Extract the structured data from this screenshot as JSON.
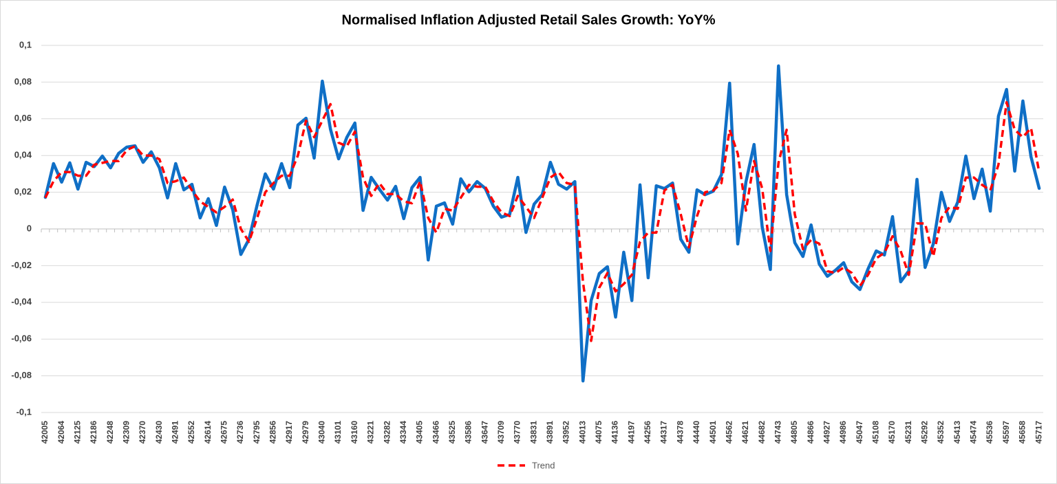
{
  "chart_data": {
    "type": "line",
    "title": "Normalised Inflation Adjusted Retail Sales Growth: YoY%",
    "categories": [
      "42005",
      null,
      "42064",
      null,
      "42125",
      null,
      "42186",
      null,
      "42248",
      null,
      "42309",
      null,
      "42370",
      null,
      "42430",
      null,
      "42491",
      null,
      "42552",
      null,
      "42614",
      null,
      "42675",
      null,
      "42736",
      null,
      "42795",
      null,
      "42856",
      null,
      "42917",
      null,
      "42979",
      null,
      "43040",
      null,
      "43101",
      null,
      "43160",
      null,
      "43221",
      null,
      "43282",
      null,
      "43344",
      null,
      "43405",
      null,
      "43466",
      null,
      "43525",
      null,
      "43586",
      null,
      "43647",
      null,
      "43709",
      null,
      "43770",
      null,
      "43831",
      null,
      "43891",
      null,
      "43952",
      null,
      "44013",
      null,
      "44075",
      null,
      "44136",
      null,
      "44197",
      null,
      "44256",
      null,
      "44317",
      null,
      "44378",
      null,
      "44440",
      null,
      "44501",
      null,
      "44562",
      null,
      "44621",
      null,
      "44682",
      null,
      "44743",
      null,
      "44805",
      null,
      "44866",
      null,
      "44927",
      null,
      "44986",
      null,
      "45047",
      null,
      "45108",
      null,
      "45170",
      null,
      "45231",
      null,
      "45292",
      null,
      "45352",
      null,
      "45413",
      null,
      "45474",
      null,
      "45536",
      null,
      "45597",
      null,
      "45658",
      null,
      "45717"
    ],
    "series": [
      {
        "color": "#0f6fc6",
        "dashed": false,
        "values": [
          0.0172,
          0.0356,
          0.0255,
          0.036,
          0.0217,
          0.0363,
          0.034,
          0.0397,
          0.0333,
          0.0412,
          0.0446,
          0.0453,
          0.0363,
          0.042,
          0.0333,
          0.0169,
          0.0356,
          0.0213,
          0.0243,
          0.006,
          0.0165,
          0.0019,
          0.0228,
          0.0105,
          -0.0139,
          -0.0056,
          0.0131,
          0.03,
          0.0217,
          0.0356,
          0.0225,
          0.0566,
          0.0603,
          0.0386,
          0.0805,
          0.0543,
          0.0382,
          0.0498,
          0.0577,
          0.0101,
          0.0281,
          0.0217,
          0.0157,
          0.0232,
          0.0056,
          0.0225,
          0.0281,
          -0.0169,
          0.0124,
          0.0142,
          0.0026,
          0.0273,
          0.0202,
          0.0258,
          0.0221,
          0.0124,
          0.0064,
          0.0079,
          0.0281,
          -0.0019,
          0.0135,
          0.0187,
          0.0363,
          0.0243,
          0.0217,
          0.0258,
          -0.0828,
          -0.039,
          -0.0243,
          -0.0206,
          -0.048,
          -0.0127,
          -0.039,
          0.024,
          -0.0266,
          0.0235,
          0.022,
          0.025,
          -0.0056,
          -0.0127,
          0.0213,
          0.0187,
          0.0206,
          0.0296,
          0.0794,
          -0.0082,
          0.0255,
          0.046,
          0.0011,
          -0.0221,
          0.0888,
          0.0187,
          -0.0075,
          -0.015,
          0.0022,
          -0.0191,
          -0.0258,
          -0.0225,
          -0.0184,
          -0.0288,
          -0.033,
          -0.0217,
          -0.012,
          -0.0142,
          0.0067,
          -0.0288,
          -0.0228,
          0.027,
          -0.021,
          -0.0082,
          0.0199,
          0.0041,
          0.0146,
          0.0397,
          0.0165,
          0.0326,
          0.0097,
          0.0614,
          0.076,
          0.0315,
          0.0697,
          0.0393,
          0.0221
        ]
      },
      {
        "name": "Trend",
        "color": "#ff0000",
        "dashed": true,
        "values": [
          0.017,
          0.026,
          0.031,
          0.031,
          0.029,
          0.029,
          0.035,
          0.036,
          0.037,
          0.037,
          0.043,
          0.045,
          0.04,
          0.04,
          0.038,
          0.025,
          0.026,
          0.028,
          0.021,
          0.015,
          0.012,
          0.009,
          0.012,
          0.016,
          0.0,
          -0.007,
          0.006,
          0.02,
          0.025,
          0.029,
          0.029,
          0.04,
          0.059,
          0.05,
          0.059,
          0.068,
          0.047,
          0.045,
          0.053,
          0.028,
          0.018,
          0.025,
          0.019,
          0.019,
          0.015,
          0.014,
          0.026,
          0.006,
          -0.002,
          0.011,
          0.01,
          0.017,
          0.024,
          0.023,
          0.023,
          0.015,
          0.009,
          0.007,
          0.018,
          0.012,
          0.006,
          0.017,
          0.028,
          0.031,
          0.025,
          0.024,
          -0.029,
          -0.061,
          -0.032,
          -0.024,
          -0.034,
          -0.03,
          -0.025,
          -0.007,
          -0.002,
          -0.002,
          0.021,
          0.024,
          0.008,
          -0.01,
          0.007,
          0.02,
          0.021,
          0.025,
          0.054,
          0.041,
          0.01,
          0.037,
          0.022,
          -0.012,
          0.036,
          0.054,
          0.008,
          -0.011,
          -0.006,
          -0.008,
          -0.023,
          -0.024,
          -0.021,
          -0.024,
          -0.031,
          -0.025,
          -0.016,
          -0.013,
          -0.004,
          -0.012,
          -0.025,
          0.003,
          0.003,
          -0.015,
          0.006,
          0.012,
          0.011,
          0.028,
          0.028,
          0.024,
          0.021,
          0.035,
          0.069,
          0.054,
          0.05,
          0.055,
          0.031
        ]
      }
    ],
    "ylim": [
      -0.1,
      0.1
    ],
    "yticks": [
      {
        "value": -0.1,
        "label": "-0,1"
      },
      {
        "value": -0.08,
        "label": "-0,08"
      },
      {
        "value": -0.06,
        "label": "-0,06"
      },
      {
        "value": -0.04,
        "label": "-0,04"
      },
      {
        "value": -0.02,
        "label": "-0,02"
      },
      0,
      {
        "value": 0.02,
        "label": "0,02"
      },
      {
        "value": 0.04,
        "label": "0,04"
      },
      {
        "value": 0.06,
        "label": "0,06"
      },
      {
        "value": 0.08,
        "label": "0,08"
      },
      {
        "value": 0.1,
        "label": "0,1"
      }
    ],
    "grid": true,
    "legend": "bottom"
  }
}
